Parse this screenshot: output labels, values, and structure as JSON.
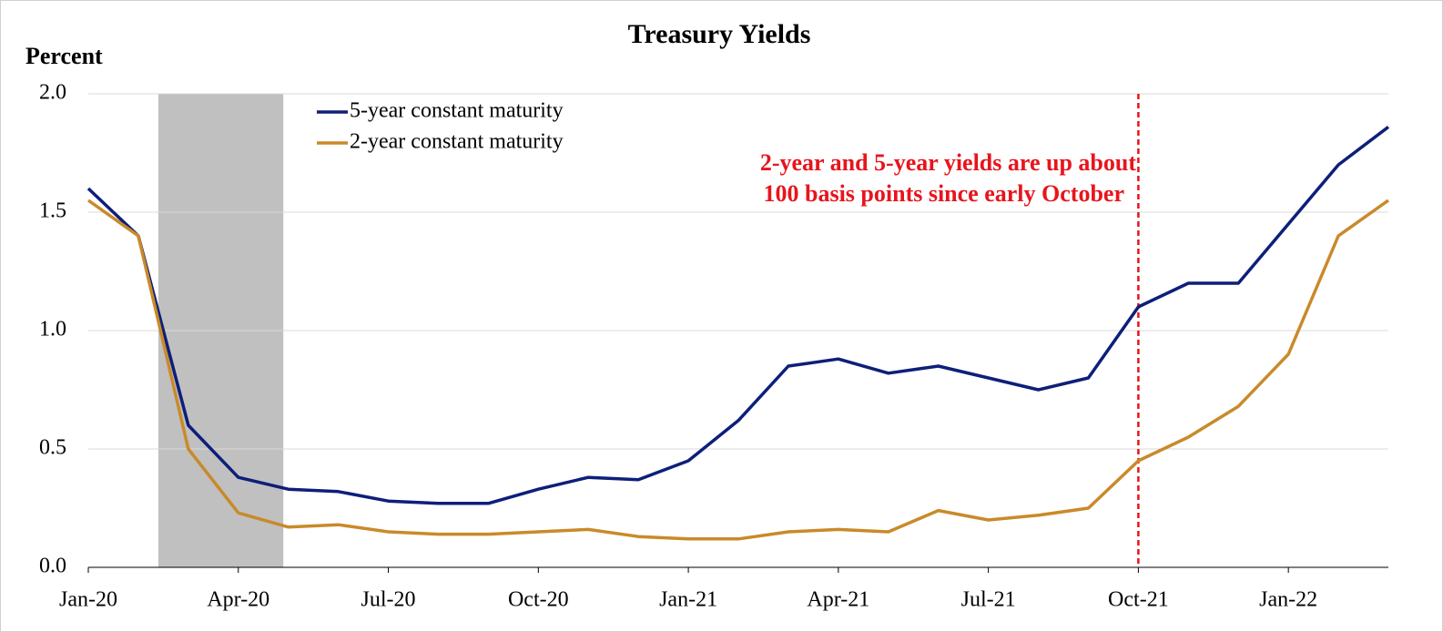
{
  "chart_data": {
    "type": "line",
    "title": "Treasury Yields",
    "y_label": "Percent",
    "annotation": [
      "2-year and 5-year yields are up about",
      "100 basis points since early October"
    ],
    "categories": [
      "Jan-20",
      null,
      null,
      "Apr-20",
      null,
      null,
      "Jul-20",
      null,
      null,
      "Oct-20",
      null,
      null,
      "Jan-21",
      null,
      null,
      "Apr-21",
      null,
      null,
      "Jul-21",
      null,
      null,
      "Oct-21",
      null,
      null,
      "Jan-22",
      null,
      null
    ],
    "series": [
      {
        "name": "5-year constant maturity",
        "color": "#0d1f7a",
        "values": [
          1.6,
          1.4,
          0.6,
          0.38,
          0.33,
          0.32,
          0.28,
          0.27,
          0.27,
          0.33,
          0.38,
          0.37,
          0.45,
          0.62,
          0.85,
          0.88,
          0.82,
          0.85,
          0.8,
          0.75,
          0.8,
          1.1,
          1.2,
          1.2,
          1.45,
          1.7,
          1.86
        ]
      },
      {
        "name": "2-year constant maturity",
        "color": "#c98a2a",
        "values": [
          1.55,
          1.4,
          0.5,
          0.23,
          0.17,
          0.18,
          0.15,
          0.14,
          0.14,
          0.15,
          0.16,
          0.13,
          0.12,
          0.12,
          0.15,
          0.16,
          0.15,
          0.24,
          0.2,
          0.22,
          0.25,
          0.45,
          0.55,
          0.68,
          0.9,
          1.4,
          1.55
        ]
      }
    ],
    "ylim": [
      0,
      2
    ],
    "yticks": [
      {
        "value": 0,
        "label": "0.0"
      },
      {
        "value": 0.5,
        "label": "0.5"
      },
      {
        "value": 1,
        "label": "1.0"
      },
      {
        "value": 1.5,
        "label": "1.5"
      },
      {
        "value": 2,
        "label": "2.0"
      }
    ],
    "grid": true
  }
}
